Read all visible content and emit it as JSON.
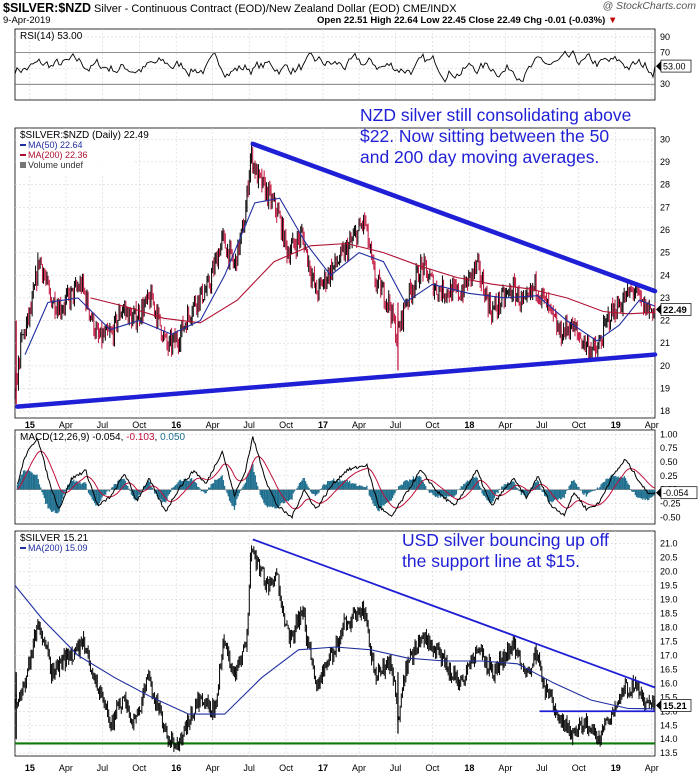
{
  "header": {
    "symbol": "$SILVER:$NZD",
    "description": "Silver - Continuous Contract (EOD)/New Zealand Dollar (EOD)  CME/INDX",
    "date": "9-Apr-2019",
    "ohlc": "Open 22.51  High 22.64  Low 22.45  Close 22.49  Chg -0.01 (-0.03%)",
    "chg_arrow": "▼",
    "brand": "@ StockCharts.com"
  },
  "colors": {
    "blue_line": "#1f1fd6",
    "ma50": "#1f2ea0",
    "ma200": "#b01030",
    "price_up": "#000000",
    "price_down": "#c0103a",
    "macd_hist": "#1f6f8f",
    "support_green": "#0a7a0a"
  },
  "chart_data": [
    {
      "id": "rsi",
      "type": "line",
      "legend": "RSI(14) 53.00",
      "ylim": [
        10,
        100
      ],
      "yticks": [
        90,
        70,
        50,
        30
      ],
      "levels": [
        70,
        30
      ],
      "last_label": "53.00",
      "x_range": [
        "2014-11-25",
        "2019-04-09"
      ],
      "values_summary": "oscillates mostly between 30 and 75"
    },
    {
      "id": "nzd",
      "type": "line",
      "legend": "$SILVER:$NZD (Daily) 22.49",
      "series": [
        {
          "name": "MA(50) 22.64",
          "key": "ma50"
        },
        {
          "name": "MA(200) 22.36",
          "key": "ma200"
        }
      ],
      "volume_note": "Volume undef",
      "ylim": [
        17.7,
        30.5
      ],
      "yticks": [
        30,
        29,
        28,
        27,
        26,
        25,
        24,
        23,
        22,
        21,
        20,
        19,
        18
      ],
      "last_label": "22.49",
      "annotation": "NZD silver still consolidating above $22. Now sitting between the 50 and 200 day moving averages.",
      "price_points": [
        [
          "2014-11-25",
          18.6
        ],
        [
          "2014-12-10",
          21.0
        ],
        [
          "2015-01-05",
          22.5
        ],
        [
          "2015-01-25",
          24.8
        ],
        [
          "2015-02-20",
          23.0
        ],
        [
          "2015-03-20",
          22.6
        ],
        [
          "2015-05-10",
          23.6
        ],
        [
          "2015-06-20",
          21.2
        ],
        [
          "2015-07-25",
          21.4
        ],
        [
          "2015-08-20",
          22.6
        ],
        [
          "2015-09-15",
          22.0
        ],
        [
          "2015-11-01",
          23.0
        ],
        [
          "2015-12-10",
          20.8
        ],
        [
          "2016-01-05",
          21.2
        ],
        [
          "2016-02-15",
          22.8
        ],
        [
          "2016-03-20",
          23.4
        ],
        [
          "2016-04-25",
          25.6
        ],
        [
          "2016-05-25",
          24.4
        ],
        [
          "2016-06-20",
          26.4
        ],
        [
          "2016-07-05",
          29.4
        ],
        [
          "2016-07-20",
          28.4
        ],
        [
          "2016-08-15",
          27.6
        ],
        [
          "2016-09-10",
          26.8
        ],
        [
          "2016-10-05",
          25.0
        ],
        [
          "2016-11-10",
          25.8
        ],
        [
          "2016-12-15",
          23.2
        ],
        [
          "2017-01-20",
          24.2
        ],
        [
          "2017-02-25",
          25.0
        ],
        [
          "2017-04-15",
          26.4
        ],
        [
          "2017-05-10",
          23.8
        ],
        [
          "2017-06-15",
          22.8
        ],
        [
          "2017-07-05",
          21.2
        ],
        [
          "2017-07-25",
          22.8
        ],
        [
          "2017-09-05",
          24.4
        ],
        [
          "2017-10-10",
          23.4
        ],
        [
          "2017-12-10",
          23.2
        ],
        [
          "2018-01-20",
          24.4
        ],
        [
          "2018-02-25",
          22.4
        ],
        [
          "2018-04-20",
          23.4
        ],
        [
          "2018-05-20",
          22.6
        ],
        [
          "2018-06-15",
          23.6
        ],
        [
          "2018-07-20",
          22.4
        ],
        [
          "2018-08-15",
          21.4
        ],
        [
          "2018-09-10",
          21.8
        ],
        [
          "2018-10-15",
          21.0
        ],
        [
          "2018-11-15",
          20.6
        ],
        [
          "2018-12-15",
          22.2
        ],
        [
          "2019-01-15",
          22.8
        ],
        [
          "2019-02-15",
          23.4
        ],
        [
          "2019-03-10",
          22.6
        ],
        [
          "2019-04-09",
          22.49
        ]
      ],
      "ma50_points": [
        [
          "2014-12-20",
          20.5
        ],
        [
          "2015-02-15",
          22.8
        ],
        [
          "2015-05-01",
          23.0
        ],
        [
          "2015-07-20",
          21.6
        ],
        [
          "2015-09-30",
          22.0
        ],
        [
          "2015-12-20",
          21.4
        ],
        [
          "2016-03-01",
          22.0
        ],
        [
          "2016-05-01",
          24.0
        ],
        [
          "2016-07-15",
          27.2
        ],
        [
          "2016-09-15",
          27.4
        ],
        [
          "2016-11-20",
          25.4
        ],
        [
          "2017-01-20",
          24.0
        ],
        [
          "2017-04-01",
          25.0
        ],
        [
          "2017-06-01",
          24.6
        ],
        [
          "2017-07-25",
          22.8
        ],
        [
          "2017-10-01",
          23.6
        ],
        [
          "2018-01-01",
          23.2
        ],
        [
          "2018-04-01",
          23.0
        ],
        [
          "2018-06-20",
          23.1
        ],
        [
          "2018-09-01",
          22.0
        ],
        [
          "2018-11-15",
          21.1
        ],
        [
          "2019-01-10",
          21.8
        ],
        [
          "2019-03-01",
          22.9
        ],
        [
          "2019-04-09",
          22.64
        ]
      ],
      "ma200_points": [
        [
          "2015-06-01",
          23.0
        ],
        [
          "2015-09-01",
          22.6
        ],
        [
          "2015-12-01",
          22.1
        ],
        [
          "2016-03-01",
          21.9
        ],
        [
          "2016-06-01",
          22.9
        ],
        [
          "2016-09-01",
          24.6
        ],
        [
          "2016-12-01",
          25.3
        ],
        [
          "2017-03-01",
          25.4
        ],
        [
          "2017-06-01",
          25.0
        ],
        [
          "2017-09-01",
          24.4
        ],
        [
          "2017-12-01",
          23.9
        ],
        [
          "2018-03-01",
          23.6
        ],
        [
          "2018-06-01",
          23.4
        ],
        [
          "2018-09-01",
          23.0
        ],
        [
          "2018-12-01",
          22.4
        ],
        [
          "2019-02-01",
          22.3
        ],
        [
          "2019-04-09",
          22.36
        ]
      ],
      "trendlines": [
        {
          "from": [
            "2016-07-10",
            29.8
          ],
          "to": [
            "2019-04-09",
            23.3
          ]
        },
        {
          "from": [
            "2014-12-01",
            18.2
          ],
          "to": [
            "2019-04-09",
            20.5
          ]
        }
      ]
    },
    {
      "id": "macd",
      "type": "line",
      "legend": "MACD(12,26,9) -0.054, -0.103, 0.050",
      "legend_parts": [
        "MACD(12,26,9) -0.054, ",
        "-0.103",
        ", ",
        "0.050"
      ],
      "ylim": [
        -0.62,
        1.08
      ],
      "yticks": [
        1.0,
        0.75,
        0.5,
        0.25,
        0.0,
        -0.25,
        -0.5
      ],
      "ytick_labels": [
        "1.00",
        "0.75",
        "0.50",
        "0.25",
        "0.00",
        "-0.25",
        "-0.50"
      ],
      "last_label": "-0.054",
      "macd_points": [
        [
          "2014-12-01",
          0.1
        ],
        [
          "2014-12-20",
          0.6
        ],
        [
          "2015-01-20",
          0.95
        ],
        [
          "2015-02-20",
          0.1
        ],
        [
          "2015-03-15",
          -0.35
        ],
        [
          "2015-04-15",
          0.2
        ],
        [
          "2015-05-20",
          0.35
        ],
        [
          "2015-06-20",
          -0.3
        ],
        [
          "2015-07-25",
          -0.1
        ],
        [
          "2015-08-25",
          0.3
        ],
        [
          "2015-09-25",
          -0.2
        ],
        [
          "2015-10-25",
          0.2
        ],
        [
          "2015-12-05",
          -0.4
        ],
        [
          "2016-01-10",
          0.05
        ],
        [
          "2016-02-15",
          0.35
        ],
        [
          "2016-03-15",
          0.1
        ],
        [
          "2016-04-25",
          0.7
        ],
        [
          "2016-05-25",
          -0.1
        ],
        [
          "2016-06-20",
          0.3
        ],
        [
          "2016-07-10",
          0.95
        ],
        [
          "2016-08-15",
          0.1
        ],
        [
          "2016-09-10",
          -0.3
        ],
        [
          "2016-10-15",
          -0.5
        ],
        [
          "2016-11-15",
          0.0
        ],
        [
          "2016-12-15",
          -0.35
        ],
        [
          "2017-01-25",
          0.1
        ],
        [
          "2017-03-01",
          0.35
        ],
        [
          "2017-04-20",
          0.45
        ],
        [
          "2017-05-20",
          -0.3
        ],
        [
          "2017-06-20",
          -0.5
        ],
        [
          "2017-07-25",
          -0.1
        ],
        [
          "2017-09-01",
          0.35
        ],
        [
          "2017-10-15",
          -0.05
        ],
        [
          "2017-11-25",
          -0.3
        ],
        [
          "2018-01-20",
          0.35
        ],
        [
          "2018-02-25",
          -0.3
        ],
        [
          "2018-04-20",
          0.2
        ],
        [
          "2018-05-25",
          -0.15
        ],
        [
          "2018-06-20",
          0.25
        ],
        [
          "2018-07-25",
          -0.3
        ],
        [
          "2018-08-25",
          -0.45
        ],
        [
          "2018-09-20",
          -0.05
        ],
        [
          "2018-10-20",
          -0.35
        ],
        [
          "2018-11-20",
          -0.25
        ],
        [
          "2018-12-20",
          0.2
        ],
        [
          "2019-01-25",
          0.55
        ],
        [
          "2019-02-25",
          0.2
        ],
        [
          "2019-03-20",
          -0.05
        ],
        [
          "2019-04-09",
          -0.054
        ]
      ]
    },
    {
      "id": "usd",
      "type": "line",
      "legend": "$SILVER 15.21",
      "series": [
        {
          "name": "MA(200) 15.09",
          "key": "ma200"
        }
      ],
      "ylim": [
        13.4,
        21.45
      ],
      "yticks": [
        21.0,
        20.5,
        20.0,
        19.5,
        19.0,
        18.5,
        18.0,
        17.5,
        17.0,
        16.5,
        16.0,
        15.5,
        15.0,
        14.5,
        14.0,
        13.5
      ],
      "ytick_labels": [
        "21.0",
        "20.5",
        "20.0",
        "19.5",
        "19.0",
        "18.5",
        "18.0",
        "17.5",
        "17.0",
        "16.5",
        "16.0",
        "15.5",
        "15.0",
        "14.5",
        "14.0",
        "13.5"
      ],
      "last_label": "15.21",
      "annotation": "USD silver bouncing up off the support line at $15.",
      "price_points": [
        [
          "2014-11-25",
          15.2
        ],
        [
          "2014-12-15",
          15.8
        ],
        [
          "2015-01-22",
          18.2
        ],
        [
          "2015-02-25",
          16.4
        ],
        [
          "2015-03-25",
          16.8
        ],
        [
          "2015-05-15",
          17.4
        ],
        [
          "2015-06-25",
          15.6
        ],
        [
          "2015-07-25",
          14.6
        ],
        [
          "2015-08-20",
          15.4
        ],
        [
          "2015-09-20",
          14.6
        ],
        [
          "2015-10-25",
          16.2
        ],
        [
          "2015-12-15",
          13.8
        ],
        [
          "2016-01-15",
          14.0
        ],
        [
          "2016-02-25",
          15.4
        ],
        [
          "2016-04-05",
          15.0
        ],
        [
          "2016-04-28",
          17.6
        ],
        [
          "2016-05-25",
          16.2
        ],
        [
          "2016-06-25",
          17.4
        ],
        [
          "2016-07-05",
          21.0
        ],
        [
          "2016-07-25",
          20.2
        ],
        [
          "2016-08-20",
          19.4
        ],
        [
          "2016-09-10",
          19.8
        ],
        [
          "2016-10-10",
          17.4
        ],
        [
          "2016-11-10",
          18.6
        ],
        [
          "2016-12-15",
          16.0
        ],
        [
          "2017-01-25",
          17.0
        ],
        [
          "2017-02-25",
          18.2
        ],
        [
          "2017-04-15",
          18.6
        ],
        [
          "2017-05-10",
          16.2
        ],
        [
          "2017-06-20",
          16.8
        ],
        [
          "2017-07-10",
          14.6
        ],
        [
          "2017-07-25",
          16.4
        ],
        [
          "2017-09-05",
          17.8
        ],
        [
          "2017-10-15",
          17.0
        ],
        [
          "2017-12-10",
          16.0
        ],
        [
          "2018-01-20",
          17.2
        ],
        [
          "2018-03-01",
          16.4
        ],
        [
          "2018-04-20",
          17.4
        ],
        [
          "2018-05-25",
          16.4
        ],
        [
          "2018-06-15",
          17.0
        ],
        [
          "2018-07-15",
          15.6
        ],
        [
          "2018-08-15",
          14.6
        ],
        [
          "2018-09-15",
          14.2
        ],
        [
          "2018-10-15",
          14.6
        ],
        [
          "2018-11-15",
          14.0
        ],
        [
          "2018-12-15",
          14.8
        ],
        [
          "2019-01-25",
          15.8
        ],
        [
          "2019-02-20",
          15.9
        ],
        [
          "2019-03-15",
          15.2
        ],
        [
          "2019-04-09",
          15.21
        ]
      ],
      "ma200_points": [
        [
          "2014-11-25",
          19.5
        ],
        [
          "2015-02-01",
          18.3
        ],
        [
          "2015-05-01",
          17.0
        ],
        [
          "2015-08-01",
          16.2
        ],
        [
          "2015-11-01",
          15.5
        ],
        [
          "2016-02-01",
          14.9
        ],
        [
          "2016-05-01",
          14.9
        ],
        [
          "2016-08-01",
          16.2
        ],
        [
          "2016-11-01",
          17.2
        ],
        [
          "2017-02-01",
          17.3
        ],
        [
          "2017-05-01",
          17.2
        ],
        [
          "2017-08-01",
          16.9
        ],
        [
          "2017-11-01",
          16.8
        ],
        [
          "2018-02-01",
          16.8
        ],
        [
          "2018-05-01",
          16.7
        ],
        [
          "2018-08-01",
          16.0
        ],
        [
          "2018-11-01",
          15.4
        ],
        [
          "2019-02-01",
          15.1
        ],
        [
          "2019-04-09",
          15.09
        ]
      ],
      "trendlines": [
        {
          "from": [
            "2016-07-10",
            21.15
          ],
          "to": [
            "2019-04-09",
            15.85
          ],
          "style": "thin"
        },
        {
          "from": [
            "2018-06-25",
            15.0
          ],
          "to": [
            "2019-04-09",
            15.0
          ],
          "style": "thin"
        }
      ],
      "support_line": 13.85
    }
  ],
  "x_axis": {
    "range": [
      "2014-11-25",
      "2019-04-09"
    ],
    "ticks": [
      {
        "date": "2015-01-01",
        "label": "15",
        "bold": true
      },
      {
        "date": "2015-04-01",
        "label": "Apr"
      },
      {
        "date": "2015-07-01",
        "label": "Jul"
      },
      {
        "date": "2015-10-01",
        "label": "Oct"
      },
      {
        "date": "2016-01-01",
        "label": "16",
        "bold": true
      },
      {
        "date": "2016-04-01",
        "label": "Apr"
      },
      {
        "date": "2016-07-01",
        "label": "Jul"
      },
      {
        "date": "2016-10-01",
        "label": "Oct"
      },
      {
        "date": "2017-01-01",
        "label": "17",
        "bold": true
      },
      {
        "date": "2017-04-01",
        "label": "Apr"
      },
      {
        "date": "2017-07-01",
        "label": "Jul"
      },
      {
        "date": "2017-10-01",
        "label": "Oct"
      },
      {
        "date": "2018-01-01",
        "label": "18",
        "bold": true
      },
      {
        "date": "2018-04-01",
        "label": "Apr"
      },
      {
        "date": "2018-07-01",
        "label": "Jul"
      },
      {
        "date": "2018-10-01",
        "label": "Oct"
      },
      {
        "date": "2019-01-01",
        "label": "19",
        "bold": true
      },
      {
        "date": "2019-04-01",
        "label": "Apr"
      }
    ]
  }
}
